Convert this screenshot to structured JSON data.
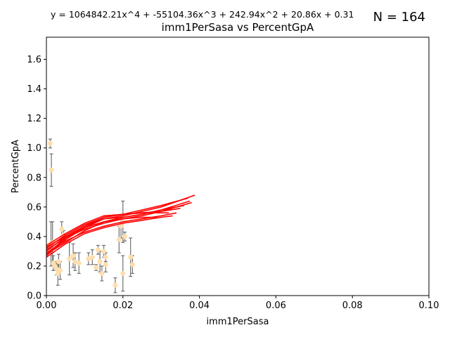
{
  "chart_data": {
    "type": "scatter",
    "title": "imm1PerSasa vs PercentGpA",
    "equation": "y = 1064842.21x^4 + -55104.36x^3 + 242.94x^2 + 20.86x + 0.31",
    "n_label": "N = 164",
    "xlabel": "imm1PerSasa",
    "ylabel": "PercentGpA",
    "xlim": [
      0,
      0.1
    ],
    "ylim": [
      0,
      1.75
    ],
    "x_ticks": [
      "0.00",
      "0.02",
      "0.04",
      "0.06",
      "0.08",
      "0.10"
    ],
    "y_ticks": [
      "0.0",
      "0.2",
      "0.4",
      "0.6",
      "0.8",
      "1.0",
      "1.2",
      "1.4",
      "1.6"
    ],
    "x_tick_values": [
      0,
      0.02,
      0.04,
      0.06,
      0.08,
      0.1
    ],
    "y_tick_values": [
      0,
      0.2,
      0.4,
      0.6,
      0.8,
      1.0,
      1.2,
      1.4,
      1.6
    ],
    "grid": false,
    "colors": {
      "points": "#ffdead",
      "errorbars": "#707070",
      "fit": "#ff0000"
    },
    "points": [
      {
        "x": 0.001,
        "y": 1.03,
        "err": 0.03
      },
      {
        "x": 0.0013,
        "y": 0.85,
        "err": 0.11
      },
      {
        "x": 0.0012,
        "y": 0.35,
        "err": 0.15
      },
      {
        "x": 0.0016,
        "y": 0.36,
        "err": 0.14
      },
      {
        "x": 0.0018,
        "y": 0.22,
        "err": 0.05
      },
      {
        "x": 0.0022,
        "y": 0.2,
        "err": 0.03
      },
      {
        "x": 0.0027,
        "y": 0.18,
        "err": 0.04
      },
      {
        "x": 0.003,
        "y": 0.15,
        "err": 0.08
      },
      {
        "x": 0.0032,
        "y": 0.23,
        "err": 0.05
      },
      {
        "x": 0.0036,
        "y": 0.17,
        "err": 0.06
      },
      {
        "x": 0.004,
        "y": 0.45,
        "err": 0.05
      },
      {
        "x": 0.0045,
        "y": 0.41,
        "err": 0.03
      },
      {
        "x": 0.006,
        "y": 0.25,
        "err": 0.11
      },
      {
        "x": 0.007,
        "y": 0.27,
        "err": 0.08
      },
      {
        "x": 0.0075,
        "y": 0.23,
        "err": 0.06
      },
      {
        "x": 0.0085,
        "y": 0.22,
        "err": 0.07
      },
      {
        "x": 0.011,
        "y": 0.25,
        "err": 0.04
      },
      {
        "x": 0.012,
        "y": 0.26,
        "err": 0.05
      },
      {
        "x": 0.013,
        "y": 0.19,
        "err": 0.02
      },
      {
        "x": 0.0135,
        "y": 0.31,
        "err": 0.03
      },
      {
        "x": 0.014,
        "y": 0.23,
        "err": 0.07
      },
      {
        "x": 0.0145,
        "y": 0.15,
        "err": 0.05
      },
      {
        "x": 0.015,
        "y": 0.3,
        "err": 0.04
      },
      {
        "x": 0.0155,
        "y": 0.26,
        "err": 0.03
      },
      {
        "x": 0.0155,
        "y": 0.21,
        "err": 0.05
      },
      {
        "x": 0.018,
        "y": 0.07,
        "err": 0.05
      },
      {
        "x": 0.019,
        "y": 0.38,
        "err": 0.09
      },
      {
        "x": 0.0195,
        "y": 0.47,
        "err": 0.08
      },
      {
        "x": 0.02,
        "y": 0.5,
        "err": 0.14
      },
      {
        "x": 0.02,
        "y": 0.15,
        "err": 0.12
      },
      {
        "x": 0.0205,
        "y": 0.4,
        "err": 0.03
      },
      {
        "x": 0.022,
        "y": 0.26,
        "err": 0.13
      },
      {
        "x": 0.0225,
        "y": 0.21,
        "err": 0.06
      }
    ],
    "fit_lines": [
      [
        [
          0.0,
          0.27
        ],
        [
          0.005,
          0.38
        ],
        [
          0.01,
          0.46
        ],
        [
          0.015,
          0.52
        ],
        [
          0.02,
          0.54
        ],
        [
          0.025,
          0.57
        ],
        [
          0.03,
          0.6
        ],
        [
          0.0388,
          0.68
        ]
      ],
      [
        [
          0.0,
          0.28
        ],
        [
          0.005,
          0.39
        ],
        [
          0.01,
          0.47
        ],
        [
          0.015,
          0.53
        ],
        [
          0.02,
          0.55
        ],
        [
          0.025,
          0.58
        ],
        [
          0.03,
          0.61
        ],
        [
          0.037,
          0.66
        ]
      ],
      [
        [
          0.0,
          0.3
        ],
        [
          0.005,
          0.4
        ],
        [
          0.01,
          0.47
        ],
        [
          0.015,
          0.52
        ],
        [
          0.02,
          0.53
        ],
        [
          0.025,
          0.55
        ],
        [
          0.03,
          0.58
        ],
        [
          0.036,
          0.61
        ]
      ],
      [
        [
          0.0,
          0.29
        ],
        [
          0.005,
          0.37
        ],
        [
          0.01,
          0.43
        ],
        [
          0.015,
          0.47
        ],
        [
          0.02,
          0.5
        ],
        [
          0.025,
          0.52
        ],
        [
          0.03,
          0.54
        ],
        [
          0.034,
          0.56
        ]
      ],
      [
        [
          0.0,
          0.32
        ],
        [
          0.005,
          0.41
        ],
        [
          0.01,
          0.48
        ],
        [
          0.015,
          0.53
        ],
        [
          0.02,
          0.55
        ],
        [
          0.025,
          0.56
        ],
        [
          0.03,
          0.57
        ],
        [
          0.035,
          0.59
        ]
      ],
      [
        [
          0.0,
          0.26
        ],
        [
          0.005,
          0.35
        ],
        [
          0.01,
          0.42
        ],
        [
          0.015,
          0.46
        ],
        [
          0.02,
          0.49
        ],
        [
          0.025,
          0.51
        ],
        [
          0.03,
          0.53
        ],
        [
          0.033,
          0.54
        ]
      ],
      [
        [
          0.0,
          0.34
        ],
        [
          0.005,
          0.42
        ],
        [
          0.01,
          0.49
        ],
        [
          0.015,
          0.54
        ],
        [
          0.02,
          0.55
        ],
        [
          0.025,
          0.56
        ],
        [
          0.03,
          0.56
        ],
        [
          0.032,
          0.56
        ]
      ],
      [
        [
          0.0,
          0.31
        ],
        [
          0.005,
          0.39
        ],
        [
          0.01,
          0.45
        ],
        [
          0.015,
          0.49
        ],
        [
          0.02,
          0.52
        ],
        [
          0.025,
          0.54
        ],
        [
          0.03,
          0.57
        ],
        [
          0.038,
          0.63
        ]
      ],
      [
        [
          0.0,
          0.28
        ],
        [
          0.005,
          0.36
        ],
        [
          0.01,
          0.44
        ],
        [
          0.015,
          0.5
        ],
        [
          0.02,
          0.53
        ],
        [
          0.025,
          0.55
        ],
        [
          0.03,
          0.58
        ],
        [
          0.0375,
          0.64
        ]
      ],
      [
        [
          0.0,
          0.33
        ],
        [
          0.005,
          0.4
        ],
        [
          0.01,
          0.46
        ],
        [
          0.015,
          0.5
        ],
        [
          0.02,
          0.52
        ],
        [
          0.025,
          0.53
        ],
        [
          0.029,
          0.53
        ]
      ]
    ]
  }
}
